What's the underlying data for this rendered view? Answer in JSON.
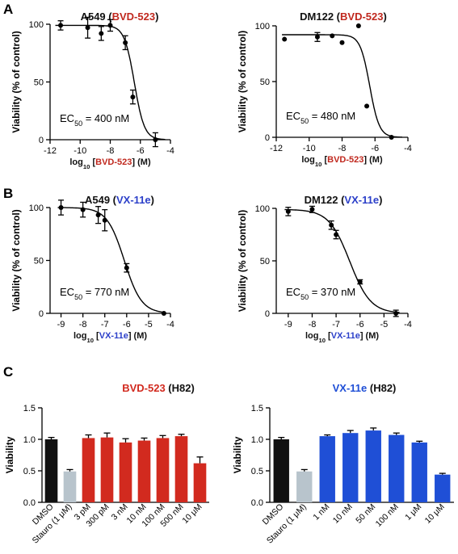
{
  "panel_labels": [
    "A",
    "B",
    "C"
  ],
  "colors": {
    "red": "#c0281e",
    "blue": "#2b3fc9",
    "black": "#111111",
    "gray": "#b8c4cc",
    "bar_red": "#d22a1f",
    "bar_blue": "#1f4fd6"
  },
  "chart_data": [
    {
      "id": "a549-bvd",
      "type": "scatter",
      "title": [
        {
          "t": "A549 (",
          "c": "black"
        },
        {
          "t": "BVD-523",
          "c": "red"
        },
        {
          "t": ")",
          "c": "black"
        }
      ],
      "ylabel": "Viability (% of control)",
      "xlabel": [
        {
          "t": "log",
          "c": "black"
        },
        {
          "t": "10",
          "c": "black",
          "sub": true
        },
        {
          "t": " [",
          "c": "black"
        },
        {
          "t": "BVD-523",
          "c": "red"
        },
        {
          "t": "] (M)",
          "c": "black"
        }
      ],
      "xlim": [
        -12,
        -4
      ],
      "ylim": [
        0,
        100
      ],
      "xticks": [
        -12,
        -10,
        -8,
        -6,
        -4
      ],
      "yticks": [
        0,
        50,
        100
      ],
      "points": [
        {
          "x": -11.3,
          "y": 99,
          "err": 4
        },
        {
          "x": -9.5,
          "y": 97,
          "err": 9
        },
        {
          "x": -8.6,
          "y": 92,
          "err": 6
        },
        {
          "x": -8.0,
          "y": 99,
          "err": 5
        },
        {
          "x": -7.0,
          "y": 84,
          "err": 6
        },
        {
          "x": -6.5,
          "y": 37,
          "err": 6
        },
        {
          "x": -5.0,
          "y": 0,
          "err": 6
        }
      ],
      "fit": {
        "top": 99,
        "bottom": 0,
        "logec50": -6.4,
        "hill": 1.3
      },
      "annotation": {
        "pre": "EC",
        "sub": "50",
        "post": " = 400 nM"
      }
    },
    {
      "id": "dm122-bvd",
      "type": "scatter",
      "title": [
        {
          "t": "DM122 (",
          "c": "black"
        },
        {
          "t": "BVD-523",
          "c": "red"
        },
        {
          "t": ")",
          "c": "black"
        }
      ],
      "ylabel": "Viability (% of control)",
      "xlabel": [
        {
          "t": "log",
          "c": "black"
        },
        {
          "t": "10",
          "c": "black",
          "sub": true
        },
        {
          "t": " [",
          "c": "black"
        },
        {
          "t": "BVD-523",
          "c": "red"
        },
        {
          "t": "] (M)",
          "c": "black"
        }
      ],
      "xlim": [
        -12,
        -4
      ],
      "ylim": [
        0,
        100
      ],
      "xticks": [
        -12,
        -10,
        -8,
        -6,
        -4
      ],
      "yticks": [
        0,
        50,
        100
      ],
      "points": [
        {
          "x": -11.5,
          "y": 88,
          "err": 0
        },
        {
          "x": -9.5,
          "y": 90,
          "err": 4
        },
        {
          "x": -8.6,
          "y": 91,
          "err": 0
        },
        {
          "x": -8.0,
          "y": 85,
          "err": 0
        },
        {
          "x": -7.0,
          "y": 100,
          "err": 0
        },
        {
          "x": -6.5,
          "y": 28,
          "err": 0
        },
        {
          "x": -5.0,
          "y": 0,
          "err": 0
        }
      ],
      "fit": {
        "top": 92,
        "bottom": 0,
        "logec50": -6.32,
        "hill": 1.5
      },
      "annotation": {
        "pre": "EC",
        "sub": "50",
        "post": " = 480 nM"
      }
    },
    {
      "id": "a549-vx",
      "type": "scatter",
      "title": [
        {
          "t": "A549 (",
          "c": "black"
        },
        {
          "t": "VX-11e",
          "c": "blue"
        },
        {
          "t": ")",
          "c": "black"
        }
      ],
      "ylabel": "Viability (% of control)",
      "xlabel": [
        {
          "t": "log",
          "c": "black"
        },
        {
          "t": "10",
          "c": "black",
          "sub": true
        },
        {
          "t": " [",
          "c": "black"
        },
        {
          "t": "VX-11e",
          "c": "blue"
        },
        {
          "t": "] (M)",
          "c": "black"
        }
      ],
      "xlim": [
        -9.5,
        -4
      ],
      "ylim": [
        0,
        100
      ],
      "xticks": [
        -9,
        -8,
        -7,
        -6,
        -5,
        -4
      ],
      "yticks": [
        0,
        50,
        100
      ],
      "points": [
        {
          "x": -9.0,
          "y": 100,
          "err": 7
        },
        {
          "x": -8.0,
          "y": 98,
          "err": 7
        },
        {
          "x": -7.3,
          "y": 93,
          "err": 8
        },
        {
          "x": -7.0,
          "y": 88,
          "err": 10
        },
        {
          "x": -6.0,
          "y": 43,
          "err": 4
        },
        {
          "x": -4.3,
          "y": 0,
          "err": 0
        }
      ],
      "fit": {
        "top": 100,
        "bottom": 0,
        "logec50": -6.11,
        "hill": 1.1
      },
      "annotation": {
        "pre": "EC",
        "sub": "50",
        "post": " = 770 nM"
      }
    },
    {
      "id": "dm122-vx",
      "type": "scatter",
      "title": [
        {
          "t": "DM122 (",
          "c": "black"
        },
        {
          "t": "VX-11e",
          "c": "blue"
        },
        {
          "t": ")",
          "c": "black"
        }
      ],
      "ylabel": "Viability (% of control)",
      "xlabel": [
        {
          "t": "log",
          "c": "black"
        },
        {
          "t": "10",
          "c": "black",
          "sub": true
        },
        {
          "t": " [",
          "c": "black"
        },
        {
          "t": "VX-11e",
          "c": "blue"
        },
        {
          "t": "] (M)",
          "c": "black"
        }
      ],
      "xlim": [
        -9.5,
        -4
      ],
      "ylim": [
        0,
        100
      ],
      "xticks": [
        -9,
        -8,
        -7,
        -6,
        -5,
        -4
      ],
      "yticks": [
        0,
        50,
        100
      ],
      "points": [
        {
          "x": -9.0,
          "y": 97,
          "err": 4
        },
        {
          "x": -8.0,
          "y": 99,
          "err": 3
        },
        {
          "x": -7.2,
          "y": 84,
          "err": 4
        },
        {
          "x": -7.0,
          "y": 75,
          "err": 4
        },
        {
          "x": -6.0,
          "y": 30,
          "err": 2
        },
        {
          "x": -4.5,
          "y": 0,
          "err": 3
        }
      ],
      "fit": {
        "top": 99,
        "bottom": 0,
        "logec50": -6.43,
        "hill": 1.0
      },
      "annotation": {
        "pre": "EC",
        "sub": "50",
        "post": " = 370 nM"
      }
    },
    {
      "id": "h82-bvd",
      "type": "bar",
      "title": [
        {
          "t": "BVD-523",
          "c": "bar_red"
        },
        {
          "t": " (H82)",
          "c": "black"
        }
      ],
      "ylabel": "Viability",
      "ylim": [
        0,
        1.5
      ],
      "yticks": [
        "0.0",
        "0.5",
        "1.0",
        "1.5"
      ],
      "categories": [
        "DMSO",
        "Stauro (1 μM)",
        "3 pM",
        "300 pM",
        "3 nM",
        "10 nM",
        "100 nM",
        "500 nM",
        "10 μM"
      ],
      "values": [
        1.0,
        0.49,
        1.02,
        1.03,
        0.95,
        0.98,
        1.02,
        1.05,
        0.62
      ],
      "errors": [
        0.03,
        0.03,
        0.05,
        0.07,
        0.06,
        0.04,
        0.04,
        0.03,
        0.1
      ],
      "bar_colors": [
        "black",
        "gray",
        "bar_red",
        "bar_red",
        "bar_red",
        "bar_red",
        "bar_red",
        "bar_red",
        "bar_red"
      ]
    },
    {
      "id": "h82-vx",
      "type": "bar",
      "title": [
        {
          "t": "VX-11e",
          "c": "bar_blue"
        },
        {
          "t": " (H82)",
          "c": "black"
        }
      ],
      "ylabel": "Viability",
      "ylim": [
        0,
        1.5
      ],
      "yticks": [
        "0.0",
        "0.5",
        "1.0",
        "1.5"
      ],
      "categories": [
        "DMSO",
        "Stauro (1 μM)",
        "1 nM",
        "10 nM",
        "50 nM",
        "100 nM",
        "1 μM",
        "10 μM"
      ],
      "values": [
        1.0,
        0.49,
        1.05,
        1.1,
        1.14,
        1.07,
        0.95,
        0.44
      ],
      "errors": [
        0.03,
        0.03,
        0.02,
        0.04,
        0.04,
        0.03,
        0.02,
        0.02
      ],
      "bar_colors": [
        "black",
        "gray",
        "bar_blue",
        "bar_blue",
        "bar_blue",
        "bar_blue",
        "bar_blue",
        "bar_blue"
      ]
    }
  ]
}
